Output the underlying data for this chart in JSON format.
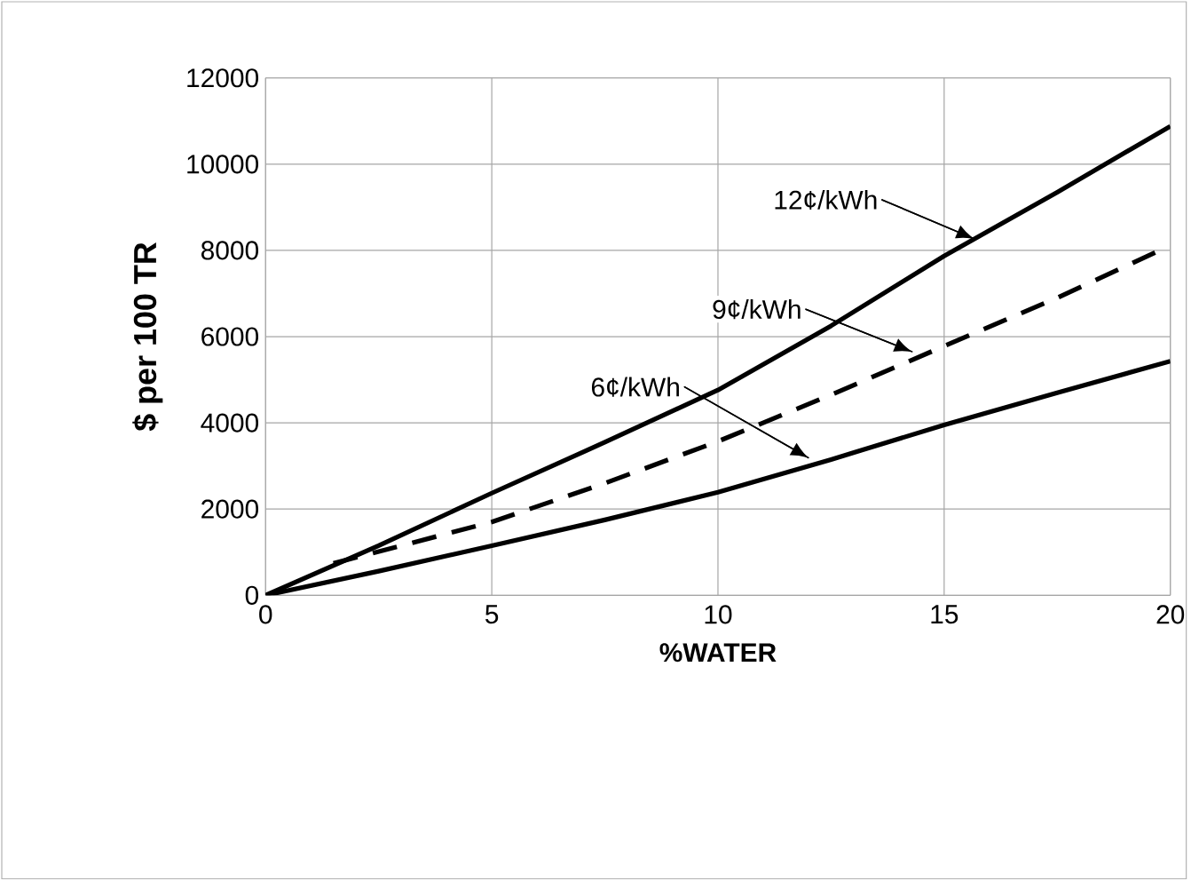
{
  "chart_data": {
    "type": "line",
    "xlabel": "%WATER",
    "ylabel": "$ per 100 TR",
    "series": [
      {
        "color": "#000000",
        "line_style": "solid",
        "x": [
          0,
          2.5,
          5,
          7.5,
          10,
          12.5,
          15,
          17.5,
          20
        ],
        "values": [
          0,
          1150,
          2370,
          3550,
          4760,
          6250,
          7870,
          9350,
          10880
        ]
      },
      {
        "color": "#000000",
        "line_style": "dashed",
        "x": [
          1.5,
          5,
          7.5,
          10,
          12.5,
          15,
          17.5,
          19.7
        ],
        "values": [
          740,
          1700,
          2600,
          3570,
          4650,
          5780,
          6900,
          7970
        ]
      },
      {
        "color": "#000000",
        "line_style": "solid",
        "x": [
          0,
          2.5,
          5,
          7.5,
          10,
          12.5,
          15,
          17.5,
          20
        ],
        "values": [
          0,
          560,
          1150,
          1750,
          2390,
          3150,
          3950,
          4700,
          5430
        ]
      }
    ],
    "annotations": [
      {
        "text": "12¢/kWh",
        "x": 15.66,
        "y": 8270
      },
      {
        "text": "9¢/kWh",
        "x": 14.29,
        "y": 5650
      },
      {
        "text": "6¢/kWh",
        "x": 12.0,
        "y": 3190
      }
    ],
    "xlim": [
      0,
      20
    ],
    "ylim": [
      0,
      12000
    ],
    "xticks": [
      0,
      5,
      10,
      15,
      20
    ],
    "yticks": [
      0,
      2000,
      4000,
      6000,
      8000,
      10000,
      12000
    ],
    "grid": true
  }
}
